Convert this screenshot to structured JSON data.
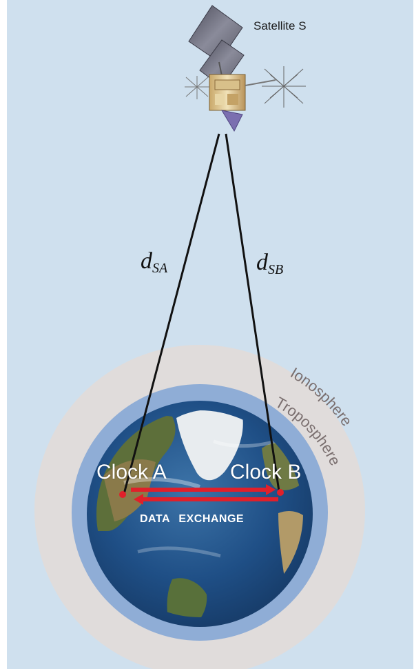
{
  "satellite": {
    "label": "Satellite S"
  },
  "distances": {
    "a": {
      "symbol": "d",
      "subscript": "SA"
    },
    "b": {
      "symbol": "d",
      "subscript": "SB"
    }
  },
  "layers": {
    "ionosphere": "Ionosphere",
    "troposphere": "Troposphere"
  },
  "clocks": {
    "a": "Clock A",
    "b": "Clock B"
  },
  "exchange": {
    "label": "DATA EXCHANGE"
  },
  "colors": {
    "background": "#cfe0ee",
    "ionosphere": "#e0dcdb",
    "troposphere": "#8fadd6",
    "ocean": "#1f4f86",
    "arrow": "#e0202a",
    "clock_dot": "#e0202a"
  }
}
